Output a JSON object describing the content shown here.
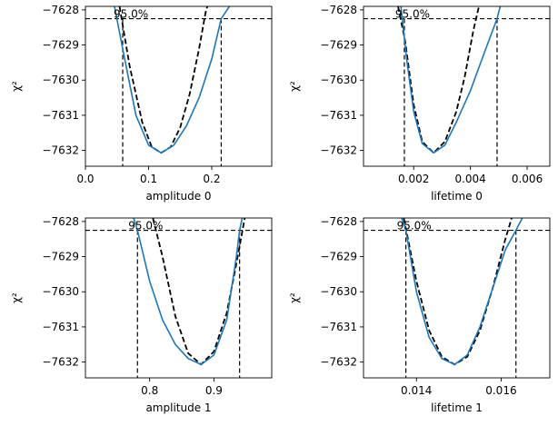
{
  "colors": {
    "profile": "#1f77b4",
    "parabola": "#000000",
    "interval": "#000000"
  },
  "chart_data": [
    {
      "type": "line",
      "xlabel": "amplitude 0",
      "ylabel": "χ²",
      "annotation": "95.0%",
      "xlim": [
        0.0,
        0.295
      ],
      "ylim": [
        -7632.45,
        -7627.9
      ],
      "xticks": [
        0.0,
        0.1,
        0.2
      ],
      "xtick_labels": [
        "0.0",
        "0.1",
        "0.2"
      ],
      "yticks": [
        -7628,
        -7629,
        -7630,
        -7631,
        -7632
      ],
      "ytick_labels": [
        "−7628",
        "−7629",
        "−7630",
        "−7631",
        "−7632"
      ],
      "threshold": -7628.25,
      "interval": [
        0.059,
        0.215
      ],
      "profile": [
        [
          0.046,
          -7627.9
        ],
        [
          0.06,
          -7629.2
        ],
        [
          0.08,
          -7631.0
        ],
        [
          0.1,
          -7631.85
        ],
        [
          0.12,
          -7632.07
        ],
        [
          0.14,
          -7631.85
        ],
        [
          0.16,
          -7631.3
        ],
        [
          0.18,
          -7630.5
        ],
        [
          0.2,
          -7629.4
        ],
        [
          0.215,
          -7628.25
        ],
        [
          0.228,
          -7627.9
        ]
      ],
      "parabola": [
        [
          0.054,
          -7627.9
        ],
        [
          0.07,
          -7629.6
        ],
        [
          0.09,
          -7631.2
        ],
        [
          0.105,
          -7631.9
        ],
        [
          0.12,
          -7632.07
        ],
        [
          0.135,
          -7631.9
        ],
        [
          0.15,
          -7631.35
        ],
        [
          0.165,
          -7630.4
        ],
        [
          0.18,
          -7629.1
        ],
        [
          0.19,
          -7628.1
        ],
        [
          0.193,
          -7627.9
        ]
      ]
    },
    {
      "type": "line",
      "xlabel": "lifetime 0",
      "ylabel": "χ²",
      "annotation": "95.0%",
      "xlim": [
        0.00023,
        0.0068
      ],
      "ylim": [
        -7632.45,
        -7627.9
      ],
      "xticks": [
        0.002,
        0.004,
        0.006
      ],
      "xtick_labels": [
        "0.002",
        "0.004",
        "0.006"
      ],
      "yticks": [
        -7628,
        -7629,
        -7630,
        -7631,
        -7632
      ],
      "ytick_labels": [
        "−7628",
        "−7629",
        "−7630",
        "−7631",
        "−7632"
      ],
      "threshold": -7628.25,
      "interval": [
        0.00167,
        0.00494
      ],
      "profile": [
        [
          0.00155,
          -7627.9
        ],
        [
          0.00175,
          -7629.4
        ],
        [
          0.002,
          -7630.9
        ],
        [
          0.0023,
          -7631.8
        ],
        [
          0.0027,
          -7632.07
        ],
        [
          0.0031,
          -7631.85
        ],
        [
          0.0035,
          -7631.2
        ],
        [
          0.004,
          -7630.3
        ],
        [
          0.0045,
          -7629.2
        ],
        [
          0.00494,
          -7628.25
        ],
        [
          0.00505,
          -7627.9
        ]
      ],
      "parabola": [
        [
          0.00145,
          -7627.9
        ],
        [
          0.0017,
          -7628.9
        ],
        [
          0.002,
          -7630.7
        ],
        [
          0.0023,
          -7631.75
        ],
        [
          0.0027,
          -7632.07
        ],
        [
          0.0031,
          -7631.75
        ],
        [
          0.0035,
          -7630.9
        ],
        [
          0.0038,
          -7629.9
        ],
        [
          0.0041,
          -7628.6
        ],
        [
          0.0043,
          -7627.9
        ]
      ]
    },
    {
      "type": "line",
      "xlabel": "amplitude 1",
      "ylabel": "χ²",
      "annotation": "95.0%",
      "xlim": [
        0.7,
        0.99
      ],
      "ylim": [
        -7632.45,
        -7627.9
      ],
      "xticks": [
        0.8,
        0.9
      ],
      "xtick_labels": [
        "0.8",
        "0.9"
      ],
      "yticks": [
        -7628,
        -7629,
        -7630,
        -7631,
        -7632
      ],
      "ytick_labels": [
        "−7628",
        "−7629",
        "−7630",
        "−7631",
        "−7632"
      ],
      "threshold": -7628.25,
      "interval": [
        0.781,
        0.94
      ],
      "profile": [
        [
          0.775,
          -7627.9
        ],
        [
          0.781,
          -7628.25
        ],
        [
          0.8,
          -7629.7
        ],
        [
          0.82,
          -7630.8
        ],
        [
          0.84,
          -7631.5
        ],
        [
          0.86,
          -7631.9
        ],
        [
          0.88,
          -7632.07
        ],
        [
          0.9,
          -7631.8
        ],
        [
          0.92,
          -7630.8
        ],
        [
          0.935,
          -7629.0
        ],
        [
          0.94,
          -7628.25
        ],
        [
          0.944,
          -7627.9
        ]
      ],
      "parabola": [
        [
          0.805,
          -7627.9
        ],
        [
          0.82,
          -7629.0
        ],
        [
          0.84,
          -7630.7
        ],
        [
          0.86,
          -7631.75
        ],
        [
          0.88,
          -7632.07
        ],
        [
          0.9,
          -7631.7
        ],
        [
          0.92,
          -7630.6
        ],
        [
          0.935,
          -7629.2
        ],
        [
          0.948,
          -7627.9
        ]
      ]
    },
    {
      "type": "line",
      "xlabel": "lifetime 1",
      "ylabel": "χ²",
      "annotation": "95.0%",
      "xlim": [
        0.01275,
        0.01715
      ],
      "ylim": [
        -7632.45,
        -7627.9
      ],
      "xticks": [
        0.014,
        0.016
      ],
      "xtick_labels": [
        "0.014",
        "0.016"
      ],
      "yticks": [
        -7628,
        -7629,
        -7630,
        -7631,
        -7632
      ],
      "ytick_labels": [
        "−7628",
        "−7629",
        "−7630",
        "−7631",
        "−7632"
      ],
      "threshold": -7628.25,
      "interval": [
        0.01375,
        0.01635
      ],
      "profile": [
        [
          0.01365,
          -7627.9
        ],
        [
          0.01375,
          -7628.25
        ],
        [
          0.014,
          -7630.0
        ],
        [
          0.0143,
          -7631.3
        ],
        [
          0.0146,
          -7631.9
        ],
        [
          0.0149,
          -7632.07
        ],
        [
          0.0152,
          -7631.8
        ],
        [
          0.0155,
          -7631.0
        ],
        [
          0.0158,
          -7629.9
        ],
        [
          0.0161,
          -7628.8
        ],
        [
          0.01635,
          -7628.25
        ],
        [
          0.0165,
          -7627.9
        ]
      ],
      "parabola": [
        [
          0.0137,
          -7627.9
        ],
        [
          0.014,
          -7629.7
        ],
        [
          0.0143,
          -7631.1
        ],
        [
          0.0146,
          -7631.85
        ],
        [
          0.0149,
          -7632.07
        ],
        [
          0.0152,
          -7631.85
        ],
        [
          0.0155,
          -7631.1
        ],
        [
          0.0158,
          -7629.9
        ],
        [
          0.0161,
          -7628.5
        ],
        [
          0.01625,
          -7627.9
        ]
      ]
    }
  ]
}
